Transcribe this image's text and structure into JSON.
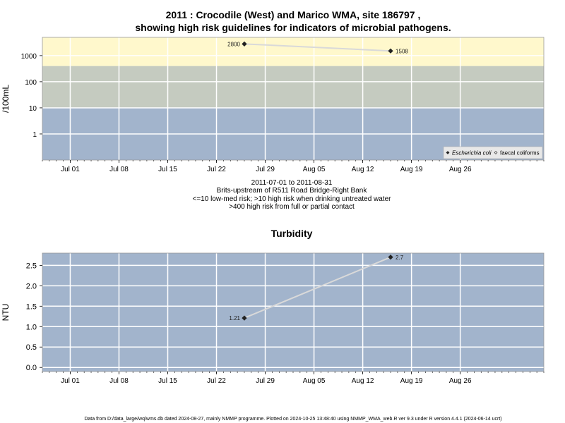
{
  "chart_data": [
    {
      "type": "line",
      "title_lines": [
        "2011 : Crocodile (West) and Marico WMA, site 186797 ,",
        "showing high risk guidelines for indicators of microbial pathogens."
      ],
      "ylabel": "/100mL",
      "y_scale": "log",
      "ylim": [
        0.1,
        5000
      ],
      "xlim": [
        "2011-06-27",
        "2011-09-07"
      ],
      "y_ticks": [
        {
          "value": 1,
          "label": "1"
        },
        {
          "value": 10,
          "label": "10"
        },
        {
          "value": 100,
          "label": "100"
        },
        {
          "value": 1000,
          "label": "1000"
        }
      ],
      "x_ticks": [
        {
          "date": "2011-07-01",
          "label": "Jul 01"
        },
        {
          "date": "2011-07-08",
          "label": "Jul 08"
        },
        {
          "date": "2011-07-15",
          "label": "Jul 15"
        },
        {
          "date": "2011-07-22",
          "label": "Jul 22"
        },
        {
          "date": "2011-07-29",
          "label": "Jul 29"
        },
        {
          "date": "2011-08-05",
          "label": "Aug 05"
        },
        {
          "date": "2011-08-12",
          "label": "Aug 12"
        },
        {
          "date": "2011-08-19",
          "label": "Aug 19"
        },
        {
          "date": "2011-08-26",
          "label": "Aug 26"
        }
      ],
      "risk_bands": [
        {
          "from": 0.1,
          "to": 10,
          "color": "#a2b4cc"
        },
        {
          "from": 10,
          "to": 400,
          "color": "#c5cbc0"
        },
        {
          "from": 400,
          "to": 5000,
          "color": "#fff8cc"
        }
      ],
      "series": [
        {
          "name": "Escherichia coli",
          "marker": "filled-diamond",
          "points": [
            {
              "x": "2011-07-26",
              "y": 2800,
              "label": "2800"
            },
            {
              "x": "2011-08-16",
              "y": 1508,
              "label": "1508"
            }
          ]
        },
        {
          "name": "faecal coliforms",
          "marker": "open-diamond",
          "points": []
        }
      ],
      "legend_position": "bottom-right",
      "caption_lines": [
        "2011-07-01 to 2011-08-31",
        "Brits-upstream of R511 Road Bridge-Right Bank",
        "<=10 low-med risk; >10 high risk when drinking untreated water",
        ">400 high risk from full or partial contact"
      ]
    },
    {
      "type": "line",
      "title": "Turbidity",
      "ylabel": "NTU",
      "ylim": [
        -0.1,
        2.8
      ],
      "xlim": [
        "2011-06-27",
        "2011-09-07"
      ],
      "y_ticks": [
        {
          "value": 0,
          "label": "0.0"
        },
        {
          "value": 0.5,
          "label": "0.5"
        },
        {
          "value": 1,
          "label": "1.0"
        },
        {
          "value": 1.5,
          "label": "1.5"
        },
        {
          "value": 2,
          "label": "2.0"
        },
        {
          "value": 2.5,
          "label": "2.5"
        }
      ],
      "x_ticks": [
        {
          "date": "2011-07-01",
          "label": "Jul 01"
        },
        {
          "date": "2011-07-08",
          "label": "Jul 08"
        },
        {
          "date": "2011-07-15",
          "label": "Jul 15"
        },
        {
          "date": "2011-07-22",
          "label": "Jul 22"
        },
        {
          "date": "2011-07-29",
          "label": "Jul 29"
        },
        {
          "date": "2011-08-05",
          "label": "Aug 05"
        },
        {
          "date": "2011-08-12",
          "label": "Aug 12"
        },
        {
          "date": "2011-08-19",
          "label": "Aug 19"
        },
        {
          "date": "2011-08-26",
          "label": "Aug 26"
        }
      ],
      "background_color": "#a2b4cc",
      "series": [
        {
          "name": "",
          "marker": "filled-diamond",
          "points": [
            {
              "x": "2011-07-26",
              "y": 1.21,
              "label": "1.21"
            },
            {
              "x": "2011-08-16",
              "y": 2.7,
              "label": "2.7"
            }
          ]
        }
      ]
    }
  ],
  "footer": "Data from D:/data_large/wq/wms.db dated 2024-08-27, mainly NMMP programme. Plotted on 2024-10-25 13:48:40 using NMMP_WMA_web.R ver 9.3 under R version 4.4.1 (2024-06-14 ucrt)"
}
